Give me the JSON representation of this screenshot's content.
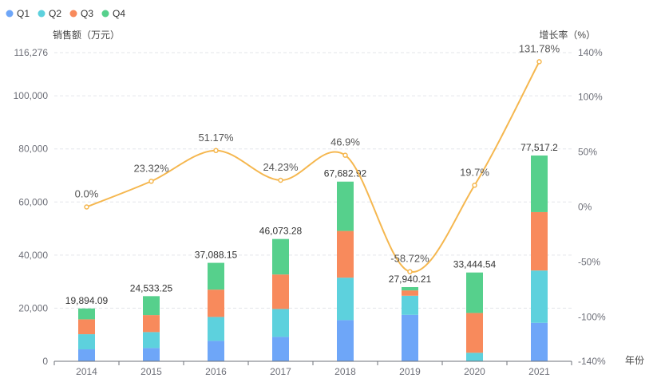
{
  "chart_data": {
    "type": "bar",
    "stacked": true,
    "categories": [
      "2014",
      "2015",
      "2016",
      "2017",
      "2018",
      "2019",
      "2020",
      "2021"
    ],
    "series": [
      {
        "name": "Q1",
        "color": "#6ea6f8",
        "values": [
          4500,
          5000,
          7700,
          9200,
          15500,
          17500,
          0,
          14500
        ]
      },
      {
        "name": "Q2",
        "color": "#5dd1dd",
        "values": [
          5700,
          6000,
          9000,
          10500,
          16000,
          7200,
          3200,
          19700
        ]
      },
      {
        "name": "Q3",
        "color": "#f88a5c",
        "values": [
          5600,
          6400,
          10300,
          13000,
          17600,
          2000,
          15000,
          22000
        ]
      },
      {
        "name": "Q4",
        "color": "#56d08c",
        "values": [
          4094.09,
          7133.25,
          10088.15,
          13373.28,
          18582.92,
          1240.21,
          15244.54,
          21317.2
        ]
      }
    ],
    "totals": [
      19894.09,
      24533.25,
      37088.15,
      46073.28,
      67682.92,
      27940.21,
      33444.54,
      77517.2
    ],
    "total_labels": [
      "19,894.09",
      "24,533.25",
      "37,088.15",
      "46,073.28",
      "67,682.92",
      "27,940.21",
      "33,444.54",
      "77,517.2"
    ],
    "growth_rate": {
      "name": "增长率",
      "color": "#f5b74f",
      "values": [
        0.0,
        23.32,
        51.17,
        24.23,
        46.9,
        -58.72,
        19.7,
        131.78
      ],
      "labels": [
        "0.0%",
        "23.32%",
        "51.17%",
        "24.23%",
        "46.9%",
        "-58.72%",
        "19.7%",
        "131.78%"
      ]
    },
    "y_left": {
      "label": "销售额（万元）",
      "min": 0,
      "max": 116276,
      "ticks": [
        0,
        20000,
        40000,
        60000,
        80000,
        100000,
        116276
      ],
      "tick_labels": [
        "0",
        "20,000",
        "40,000",
        "60,000",
        "80,000",
        "100,000",
        "116,276"
      ]
    },
    "y_right": {
      "label": "增长率（%）",
      "min": -140,
      "max": 140,
      "ticks": [
        -140,
        -100,
        -50,
        0,
        50,
        100,
        140
      ],
      "tick_labels": [
        "-140%",
        "-100%",
        "-50%",
        "0%",
        "50%",
        "100%",
        "140%"
      ]
    },
    "xlabel": "年份",
    "legend_position": "top-left",
    "grid": true
  }
}
